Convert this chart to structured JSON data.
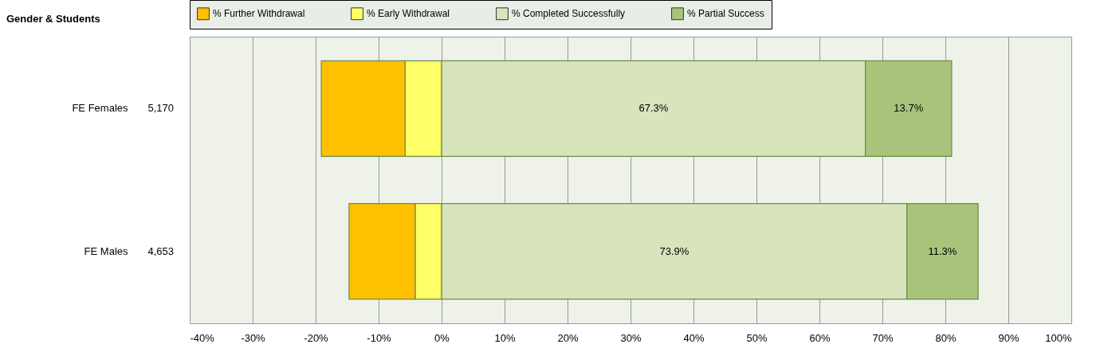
{
  "chart_data": {
    "type": "bar",
    "orientation": "horizontal",
    "stacked": true,
    "title": "Gender & Students",
    "categories": [
      "FE Females",
      "FE Males"
    ],
    "annotations": [
      "5,170",
      "4,653"
    ],
    "series": [
      {
        "name": "% Early Withdrawal",
        "color": "#ffff66",
        "values": [
          -5.8,
          -4.2
        ]
      },
      {
        "name": "% Further Withdrawal",
        "color": "#ffc000",
        "values": [
          -13.3,
          -10.5
        ]
      },
      {
        "name": "% Completed Successfully",
        "color": "#d8e4bc",
        "values": [
          67.3,
          73.9
        ],
        "value_labels": [
          "67.3%",
          "73.9%"
        ]
      },
      {
        "name": "% Partial Success",
        "color": "#a9c47a",
        "values": [
          13.7,
          11.3
        ],
        "value_labels": [
          "13.7%",
          "11.3%"
        ]
      }
    ],
    "xlim": [
      -40,
      100
    ],
    "xticks": [
      {
        "value": -40,
        "label": "-40%"
      },
      {
        "value": -30,
        "label": "-30%"
      },
      {
        "value": -20,
        "label": "-20%"
      },
      {
        "value": -10,
        "label": "-10%"
      },
      {
        "value": 0,
        "label": "0%"
      },
      {
        "value": 10,
        "label": "10%"
      },
      {
        "value": 20,
        "label": "20%"
      },
      {
        "value": 30,
        "label": "30%"
      },
      {
        "value": 40,
        "label": "40%"
      },
      {
        "value": 50,
        "label": "50%"
      },
      {
        "value": 60,
        "label": "60%"
      },
      {
        "value": 70,
        "label": "70%"
      },
      {
        "value": 80,
        "label": "80%"
      },
      {
        "value": 90,
        "label": "90%"
      },
      {
        "value": 100,
        "label": "100%"
      }
    ],
    "grid": "x",
    "legend": "top"
  }
}
